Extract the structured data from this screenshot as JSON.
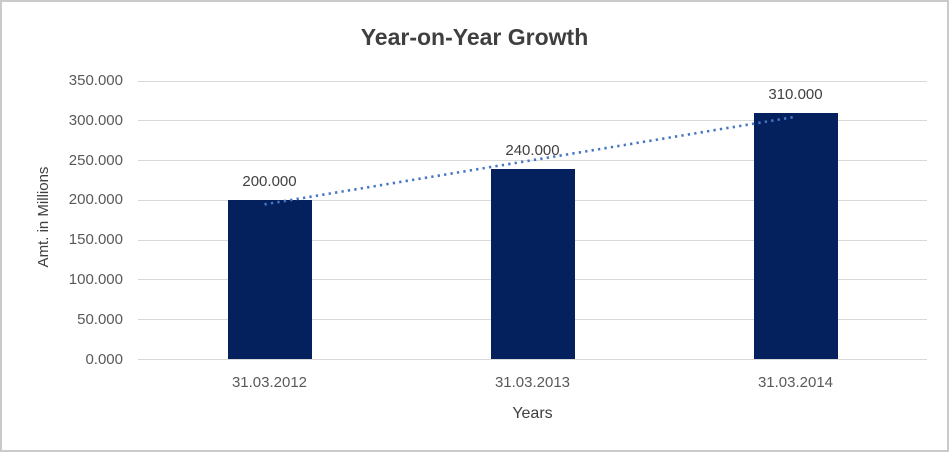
{
  "chart": {
    "title": "Year-on-Year Growth",
    "y_axis_title": "Amt. in Millions",
    "x_axis_title": "Years"
  },
  "chart_data": {
    "type": "bar",
    "title": "Year-on-Year Growth",
    "xlabel": "Years",
    "ylabel": "Amt. in Millions",
    "categories": [
      "31.03.2012",
      "31.03.2013",
      "31.03.2014"
    ],
    "values": [
      200000,
      240000,
      310000
    ],
    "data_labels": [
      "200.000",
      "240.000",
      "310.000"
    ],
    "ylim": [
      0,
      350000
    ],
    "ytick_step": 50000,
    "ytick_labels": [
      "0.000",
      "50.000",
      "100.000",
      "150.000",
      "200.000",
      "250.000",
      "300.000",
      "350.000"
    ],
    "grid": true,
    "legend_position": "none",
    "bar_color": "#04215e",
    "grid_color": "#d9d9d9",
    "trendline": {
      "type": "linear",
      "style": "dotted",
      "color": "#4577c5",
      "start_value": 195000,
      "end_value": 305000
    }
  }
}
